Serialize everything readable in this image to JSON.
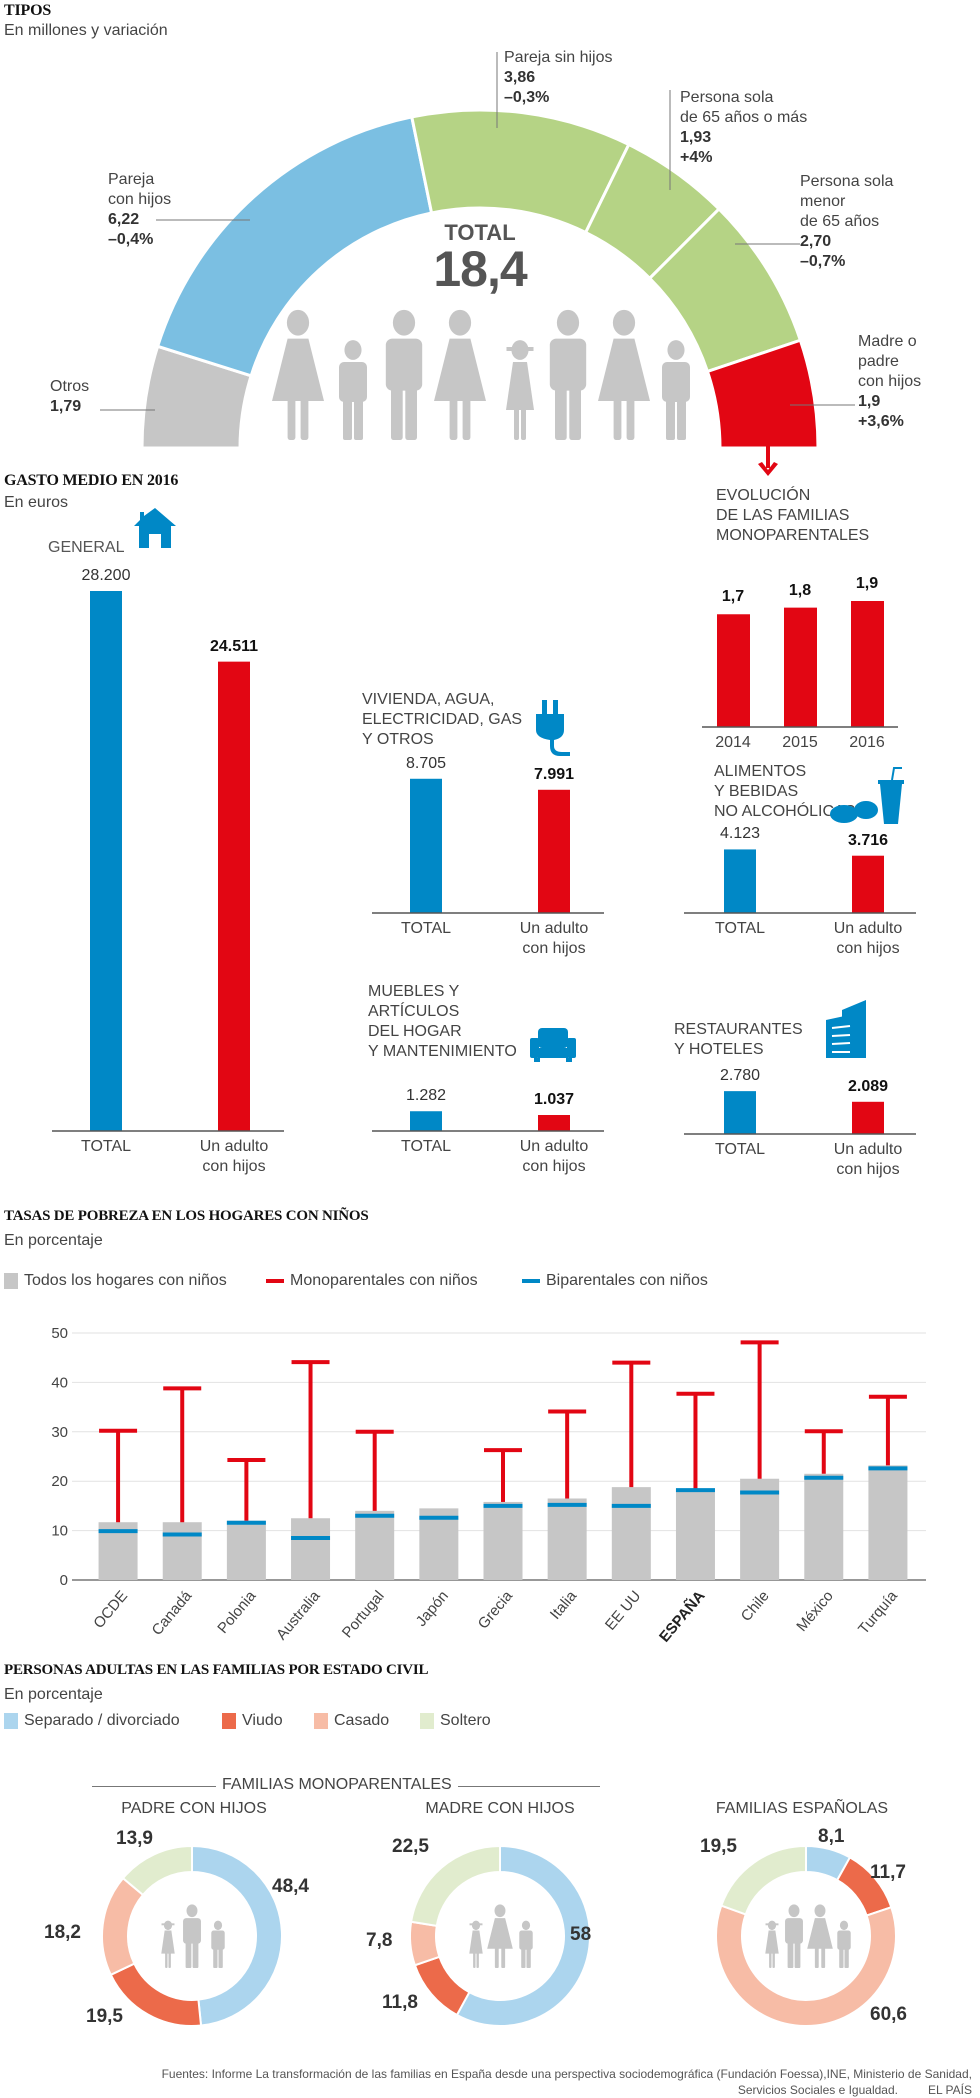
{
  "colors": {
    "blue_light": "#7bbfe2",
    "green": "#b5d385",
    "gray": "#c6c6c6",
    "red": "#e20613",
    "blue": "#0088c6",
    "sep": "#acd5ee",
    "viudo": "#ec6a4a",
    "casado": "#f7bca6",
    "soltero": "#e1ecce",
    "figure": "#c6c6c6"
  },
  "tipos": {
    "title": "TIPOS",
    "subtitle": "En millones y variación",
    "total_label": "TOTAL",
    "total_value": "18,4",
    "segments": [
      {
        "name": "otros",
        "label_lines": [
          "Otros"
        ],
        "value": "1,79",
        "change": "",
        "millions": 1.79,
        "color": "#c6c6c6"
      },
      {
        "name": "pareja-con-hijos",
        "label_lines": [
          "Pareja",
          "con hijos"
        ],
        "value": "6,22",
        "change": "–0,4%",
        "millions": 6.22,
        "color": "#7bbfe2"
      },
      {
        "name": "pareja-sin-hijos",
        "label_lines": [
          "Pareja sin hijos"
        ],
        "value": "3,86",
        "change": "–0,3%",
        "millions": 3.86,
        "color": "#b5d385"
      },
      {
        "name": "persona-sola-65-mas",
        "label_lines": [
          "Persona sola",
          "de 65 años o más"
        ],
        "value": "1,93",
        "change": "+4%",
        "millions": 1.93,
        "color": "#b5d385"
      },
      {
        "name": "persona-sola-menor-65",
        "label_lines": [
          "Persona sola",
          "menor",
          "de 65 años"
        ],
        "value": "2,70",
        "change": "–0,7%",
        "millions": 2.7,
        "color": "#b5d385"
      },
      {
        "name": "madre-padre-con-hijos",
        "label_lines": [
          "Madre o",
          "padre",
          "con hijos"
        ],
        "value": "1,9",
        "change": "+3,6%",
        "millions": 1.9,
        "color": "#e20613"
      }
    ]
  },
  "gasto": {
    "title": "GASTO MEDIO EN 2016",
    "subtitle": "En euros",
    "cat_total": "TOTAL",
    "cat_adulto_1": "Un adulto",
    "cat_adulto_2": "con hijos",
    "general": {
      "label": "GENERAL",
      "total": "28.200",
      "adulto": "24.511",
      "total_num": 28200,
      "adulto_num": 24511
    },
    "vivienda": {
      "label_lines": [
        "VIVIENDA, AGUA,",
        "ELECTRICIDAD, GAS",
        "Y OTROS"
      ],
      "total": "8.705",
      "adulto": "7.991",
      "total_num": 8705,
      "adulto_num": 7991
    },
    "alimentos": {
      "label_lines": [
        "ALIMENTOS",
        "Y BEBIDAS",
        "NO ALCOHÓLICAS"
      ],
      "total": "4.123",
      "adulto": "3.716",
      "total_num": 4123,
      "adulto_num": 3716
    },
    "muebles": {
      "label_lines": [
        "MUEBLES Y",
        "ARTÍCULOS",
        "DEL HOGAR",
        "Y MANTENIMIENTO"
      ],
      "total": "1.282",
      "adulto": "1.037",
      "total_num": 1282,
      "adulto_num": 1037
    },
    "restaurantes": {
      "label_lines": [
        "RESTAURANTES",
        "Y HOTELES"
      ],
      "total": "2.780",
      "adulto": "2.089",
      "total_num": 2780,
      "adulto_num": 2089
    }
  },
  "evolucion": {
    "title_lines": [
      "EVOLUCIÓN",
      "DE LAS FAMILIAS",
      "MONOPARENTALES"
    ],
    "years": [
      "2014",
      "2015",
      "2016"
    ],
    "labels": [
      "1,7",
      "1,8",
      "1,9"
    ],
    "values": [
      1.7,
      1.8,
      1.9
    ]
  },
  "pobreza": {
    "title": "TASAS DE POBREZA EN LOS HOGARES CON NIÑOS",
    "subtitle": "En porcentaje",
    "legend": {
      "todos": "Todos los hogares con niños",
      "mono": "Monoparentales con niños",
      "bi": "Biparentales con niños"
    }
  },
  "estado_civil": {
    "title": "PERSONAS ADULTAS EN LAS FAMILIAS POR ESTADO CIVIL",
    "subtitle": "En porcentaje",
    "legend": [
      "Separado / divorciado",
      "Viudo",
      "Casado",
      "Soltero"
    ],
    "group_label": "FAMILIAS MONOPARENTALES"
  },
  "footer": {
    "line1": "Fuentes: Informe La transformación de las familias en España desde una perspectiva sociodemográfica (Fundación Foessa),INE, Ministerio de Sanidad,",
    "line2": "Servicios Sociales e Igualdad.",
    "brand": "EL PAÍS"
  },
  "chart_data": [
    {
      "type": "pie",
      "title": "TIPOS",
      "subtitle": "En millones y variación",
      "categories": [
        "Otros",
        "Pareja con hijos",
        "Pareja sin hijos",
        "Persona sola de 65 años o más",
        "Persona sola menor de 65 años",
        "Madre o padre con hijos"
      ],
      "values": [
        1.79,
        6.22,
        3.86,
        1.93,
        2.7,
        1.9
      ],
      "changes": [
        "",
        "-0,4%",
        "-0,3%",
        "+4%",
        "-0,7%",
        "+3,6%"
      ],
      "total": 18.4
    },
    {
      "type": "bar",
      "title": "GASTO MEDIO EN 2016 (En euros)",
      "categories": [
        "GENERAL",
        "VIVIENDA, AGUA, ELECTRICIDAD, GAS Y OTROS",
        "ALIMENTOS Y BEBIDAS NO ALCOHÓLICAS",
        "MUEBLES Y ARTÍCULOS DEL HOGAR Y MANTENIMIENTO",
        "RESTAURANTES Y HOTELES"
      ],
      "series": [
        {
          "name": "TOTAL",
          "values": [
            28200,
            8705,
            4123,
            1282,
            2780
          ]
        },
        {
          "name": "Un adulto con hijos",
          "values": [
            24511,
            7991,
            3716,
            1037,
            2089
          ]
        }
      ]
    },
    {
      "type": "bar",
      "title": "EVOLUCIÓN DE LAS FAMILIAS MONOPARENTALES",
      "categories": [
        "2014",
        "2015",
        "2016"
      ],
      "values": [
        1.7,
        1.8,
        1.9
      ]
    },
    {
      "type": "bar",
      "title": "TASAS DE POBREZA EN LOS HOGARES CON NIÑOS",
      "subtitle": "En porcentaje",
      "categories": [
        "OCDE",
        "Canadá",
        "Polonia",
        "Australia",
        "Portugal",
        "Japón",
        "Grecia",
        "Italia",
        "EE UU",
        "ESPAÑA",
        "Chile",
        "México",
        "Turquía"
      ],
      "series": [
        {
          "name": "Todos los hogares con niños",
          "values": [
            11.7,
            11.7,
            12.0,
            12.5,
            14.0,
            14.5,
            15.8,
            16.5,
            18.8,
            18.5,
            20.5,
            21.5,
            23.2
          ]
        },
        {
          "name": "Monoparentales con niños",
          "values": [
            30.2,
            38.8,
            24.3,
            44.1,
            30.0,
            null,
            26.3,
            34.1,
            44.0,
            37.7,
            48.1,
            30.1,
            37.1
          ]
        },
        {
          "name": "Biparentales con niños",
          "values": [
            9.9,
            9.2,
            11.6,
            8.5,
            13.0,
            12.6,
            15.0,
            15.2,
            15.0,
            18.2,
            17.7,
            20.7,
            22.6
          ]
        }
      ],
      "ylim": [
        0,
        50
      ],
      "yticks": [
        0,
        10,
        20,
        30,
        40,
        50
      ],
      "grid": true,
      "legend": "top-left"
    },
    {
      "type": "pie",
      "title": "PADRE CON HIJOS",
      "categories": [
        "Separado / divorciado",
        "Viudo",
        "Casado",
        "Soltero"
      ],
      "values": [
        48.4,
        19.5,
        18.2,
        13.9
      ]
    },
    {
      "type": "pie",
      "title": "MADRE CON HIJOS",
      "categories": [
        "Separado / divorciado",
        "Viudo",
        "Casado",
        "Soltero"
      ],
      "values": [
        58,
        11.8,
        7.8,
        22.5
      ]
    },
    {
      "type": "pie",
      "title": "FAMILIAS ESPAÑOLAS",
      "categories": [
        "Separado / divorciado",
        "Viudo",
        "Casado",
        "Soltero"
      ],
      "values": [
        8.1,
        11.7,
        60.6,
        19.5
      ]
    }
  ]
}
